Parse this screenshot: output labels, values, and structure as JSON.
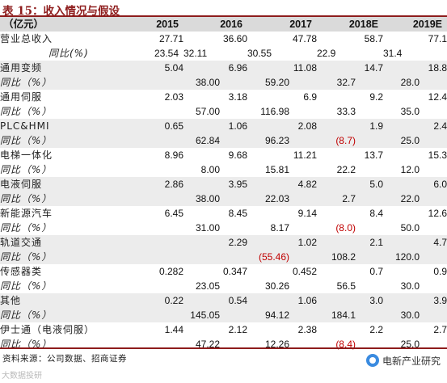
{
  "title": "表 15：收入情况与假设",
  "header": {
    "label": "（亿元）",
    "years": [
      "2015",
      "2016",
      "2017",
      "2018E",
      "2019E"
    ]
  },
  "rows": [
    {
      "label": "营业总收入",
      "values": [
        "27.71",
        "36.60",
        "47.78",
        "58.7",
        "77.1"
      ],
      "shade": false
    },
    {
      "label": "同比(%)",
      "values": [
        "23.54",
        "32.11",
        "30.55",
        "22.9",
        "31.4"
      ],
      "shade": false
    },
    {
      "label": "通用变频",
      "values": [
        "5.04",
        "6.96",
        "11.08",
        "14.7",
        "18.8"
      ],
      "shade": true
    },
    {
      "label": "同比（%）",
      "values": [
        "",
        "38.00",
        "59.20",
        "32.7",
        "28.0"
      ],
      "shade": true
    },
    {
      "label": "通用伺服",
      "values": [
        "2.03",
        "3.18",
        "6.9",
        "9.2",
        "12.4"
      ],
      "shade": false
    },
    {
      "label": "同比（%）",
      "values": [
        "",
        "57.00",
        "116.98",
        "33.3",
        "35.0"
      ],
      "shade": false
    },
    {
      "label": "PLC&HMI",
      "values": [
        "0.65",
        "1.06",
        "2.08",
        "1.9",
        "2.4"
      ],
      "shade": true
    },
    {
      "label": "同比（%）",
      "values": [
        "",
        "62.84",
        "96.23",
        "(8.7)",
        "25.0"
      ],
      "shade": true
    },
    {
      "label": "电梯一体化",
      "values": [
        "8.96",
        "9.68",
        "11.21",
        "13.7",
        "15.3"
      ],
      "shade": false
    },
    {
      "label": "同比（%）",
      "values": [
        "",
        "8.00",
        "15.81",
        "22.2",
        "12.0"
      ],
      "shade": false
    },
    {
      "label": "电液伺服",
      "values": [
        "2.86",
        "3.95",
        "4.82",
        "5.0",
        "6.0"
      ],
      "shade": true
    },
    {
      "label": "同比（%）",
      "values": [
        "",
        "38.00",
        "22.03",
        "2.7",
        "22.0"
      ],
      "shade": true
    },
    {
      "label": "新能源汽车",
      "values": [
        "6.45",
        "8.45",
        "9.14",
        "8.4",
        "12.6"
      ],
      "shade": false
    },
    {
      "label": "同比（%）",
      "values": [
        "",
        "31.00",
        "8.17",
        "(8.0)",
        "50.0"
      ],
      "shade": false
    },
    {
      "label": "轨道交通",
      "values": [
        "",
        "2.29",
        "1.02",
        "2.1",
        "4.7"
      ],
      "shade": true
    },
    {
      "label": "同比（%）",
      "values": [
        "",
        "",
        "(55.46)",
        "108.2",
        "120.0"
      ],
      "shade": true
    },
    {
      "label": "传感器类",
      "values": [
        "0.282",
        "0.347",
        "0.452",
        "0.7",
        "0.9"
      ],
      "shade": false
    },
    {
      "label": "同比（%）",
      "values": [
        "",
        "23.05",
        "30.26",
        "56.5",
        "30.0"
      ],
      "shade": false
    },
    {
      "label": "其他",
      "values": [
        "0.22",
        "0.54",
        "1.06",
        "3.0",
        "3.9"
      ],
      "shade": true
    },
    {
      "label": "同比（%）",
      "values": [
        "",
        "145.05",
        "94.12",
        "184.1",
        "30.0"
      ],
      "shade": true
    },
    {
      "label": "伊士通（电液伺服）",
      "values": [
        "1.44",
        "2.12",
        "2.38",
        "2.2",
        "2.7"
      ],
      "shade": false
    },
    {
      "label": "同比（%）",
      "values": [
        "",
        "47.22",
        "12.26",
        "(8.4)",
        "25.0"
      ],
      "shade": false
    }
  ],
  "source": "资料来源：公司数据、招商证券",
  "watermark_left": "大数据投研",
  "watermark_right": "电新产业研究",
  "colors": {
    "accent": "#8e1c1c",
    "negative": "#c00000",
    "shade": "#ececec",
    "header_bg": "#dadada"
  }
}
